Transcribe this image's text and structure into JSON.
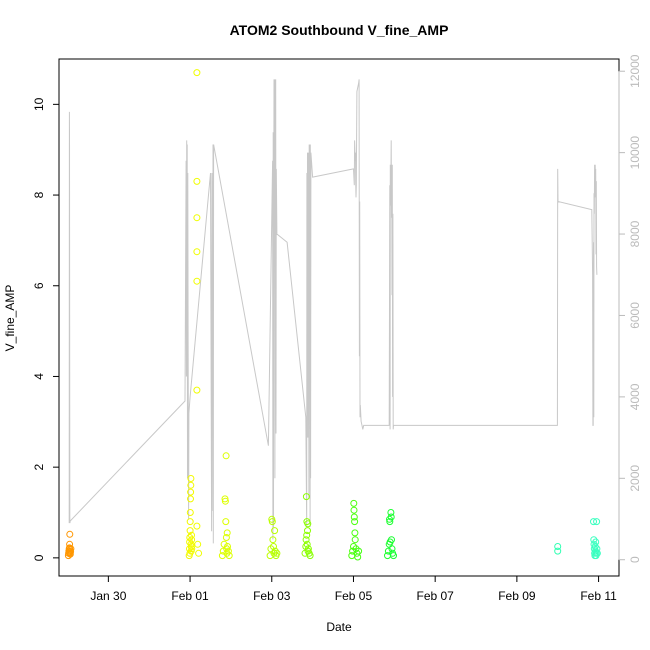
{
  "chart_data": {
    "type": "scatter",
    "title": "ATOM2 Southbound V_fine_AMP",
    "xlabel": "Date",
    "ylabel": "V_fine_AMP",
    "xlim": [
      "2024-01-28T19:00",
      "2024-02-11T12:00"
    ],
    "ylim": [
      -0.4,
      11.0
    ],
    "y2lim": [
      -400,
      12300
    ],
    "x_ticks": [
      {
        "label": "Jan 30",
        "date": "2024-01-30"
      },
      {
        "label": "Feb 01",
        "date": "2024-02-01"
      },
      {
        "label": "Feb 03",
        "date": "2024-02-03"
      },
      {
        "label": "Feb 05",
        "date": "2024-02-05"
      },
      {
        "label": "Feb 07",
        "date": "2024-02-07"
      },
      {
        "label": "Feb 09",
        "date": "2024-02-09"
      },
      {
        "label": "Feb 11",
        "date": "2024-02-11"
      }
    ],
    "y_ticks": [
      0,
      2,
      4,
      6,
      8,
      10
    ],
    "y2_ticks": [
      0,
      2000,
      4000,
      6000,
      8000,
      10000,
      12000
    ],
    "grid": false,
    "colors": {
      "point_gradient": [
        "#ff8c00",
        "#ffd000",
        "#f0ff00",
        "#c0ff00",
        "#60ff00",
        "#00ff40",
        "#00ff80",
        "#30ffb0",
        "#40ffc8"
      ],
      "line": "#c8c8c8",
      "axis": "#000000",
      "right_axis": "#bbbbbb"
    },
    "series": [
      {
        "type": "line",
        "axis": "right",
        "x": [
          "2024-01-29T01:00",
          "2024-01-29T01:05",
          "2024-01-29T01:10",
          "2024-01-29T01:20",
          "2024-01-29T01:25",
          "2024-01-29T01:35",
          "2024-01-31T21:00",
          "2024-01-31T21:40",
          "2024-01-31T21:50",
          "2024-01-31T22:00",
          "2024-01-31T22:10",
          "2024-01-31T22:20",
          "2024-01-31T22:30",
          "2024-01-31T22:40",
          "2024-01-31T22:50",
          "2024-01-31T23:00",
          "2024-01-31T23:10",
          "2024-01-31T23:20",
          "2024-02-01T00:00",
          "2024-02-01T12:00",
          "2024-02-01T12:40",
          "2024-02-01T12:50",
          "2024-02-01T13:00",
          "2024-02-01T13:10",
          "2024-02-01T13:20",
          "2024-02-01T13:30",
          "2024-02-01T13:40",
          "2024-02-01T13:50",
          "2024-02-02T22:00",
          "2024-02-03T00:30",
          "2024-02-03T00:40",
          "2024-02-03T00:50",
          "2024-02-03T01:00",
          "2024-02-03T01:10",
          "2024-02-03T01:20",
          "2024-02-03T01:30",
          "2024-02-03T01:40",
          "2024-02-03T01:50",
          "2024-02-03T02:00",
          "2024-02-03T02:10",
          "2024-02-03T02:20",
          "2024-02-03T02:30",
          "2024-02-03T02:40",
          "2024-02-03T03:00",
          "2024-02-03T09:00",
          "2024-02-03T20:00",
          "2024-02-03T20:30",
          "2024-02-03T20:40",
          "2024-02-03T20:50",
          "2024-02-03T21:00",
          "2024-02-03T21:10",
          "2024-02-03T21:20",
          "2024-02-03T21:30",
          "2024-02-03T21:40",
          "2024-02-03T21:50",
          "2024-02-03T22:00",
          "2024-02-03T22:10",
          "2024-02-03T22:20",
          "2024-02-03T22:30",
          "2024-02-03T22:40",
          "2024-02-03T22:50",
          "2024-02-03T23:00",
          "2024-02-04T00:00",
          "2024-02-05T00:00",
          "2024-02-05T00:30",
          "2024-02-05T00:40",
          "2024-02-05T01:00",
          "2024-02-05T01:10",
          "2024-02-05T01:20",
          "2024-02-05T01:30",
          "2024-02-05T01:40",
          "2024-02-05T02:00",
          "2024-02-05T03:00",
          "2024-02-05T03:20",
          "2024-02-05T03:30",
          "2024-02-05T03:40",
          "2024-02-05T03:50",
          "2024-02-05T04:00",
          "2024-02-05T04:30",
          "2024-02-05T05:00",
          "2024-02-05T05:30",
          "2024-02-05T06:00",
          "2024-02-05T06:30",
          "2024-02-05T20:30",
          "2024-02-05T21:00",
          "2024-02-05T21:20",
          "2024-02-05T21:30",
          "2024-02-05T21:40",
          "2024-02-05T21:50",
          "2024-02-05T22:00",
          "2024-02-05T22:10",
          "2024-02-05T22:20",
          "2024-02-05T22:30",
          "2024-02-05T22:40",
          "2024-02-05T22:50",
          "2024-02-05T23:00",
          "2024-02-05T23:10",
          "2024-02-05T23:20",
          "2024-02-05T23:30",
          "2024-02-06T00:00",
          "2024-02-09T23:50",
          "2024-02-10T00:00",
          "2024-02-10T00:10",
          "2024-02-10T20:00",
          "2024-02-10T20:30",
          "2024-02-10T20:40",
          "2024-02-10T20:50",
          "2024-02-10T21:00",
          "2024-02-10T21:10",
          "2024-02-10T21:20",
          "2024-02-10T21:30",
          "2024-02-10T21:40",
          "2024-02-10T21:50",
          "2024-02-10T22:00",
          "2024-02-10T22:10",
          "2024-02-10T22:20",
          "2024-02-10T22:30",
          "2024-02-10T22:40",
          "2024-02-10T22:50",
          "2024-02-10T23:00"
        ],
        "y": [
          900,
          11000,
          10500,
          1100,
          900,
          950,
          3900,
          9800,
          4500,
          10300,
          7000,
          10200,
          2000,
          9500,
          5500,
          3000,
          1000,
          3600,
          4000,
          9500,
          700,
          9500,
          8500,
          9300,
          1200,
          10200,
          400,
          10200,
          2800,
          9800,
          500,
          10500,
          800,
          9200,
          11800,
          9500,
          11800,
          2000,
          11800,
          10300,
          11800,
          3100,
          9600,
          8000,
          7800,
          3500,
          800,
          9500,
          6000,
          10000,
          3000,
          10000,
          7500,
          10000,
          1500,
          10200,
          9500,
          10200,
          800,
          10200,
          2000,
          10000,
          9400,
          9600,
          9200,
          10300,
          9800,
          10000,
          9300,
          8900,
          9200,
          11500,
          11700,
          11800,
          5000,
          8800,
          3500,
          3800,
          3400,
          3300,
          3200,
          3300,
          3300,
          3300,
          3300,
          9200,
          3200,
          9700,
          8700,
          9300,
          10300,
          8400,
          9200,
          6500,
          9700,
          4000,
          8500,
          3200,
          3300,
          3300,
          3300,
          9600,
          8800,
          8600,
          7000,
          3300,
          3300,
          7800,
          3500,
          9000,
          8500,
          9700,
          8900,
          9700,
          9200,
          9600,
          7500,
          9300,
          7200,
          7000
        ]
      },
      {
        "type": "scatter",
        "axis": "left",
        "name": "",
        "points": [
          {
            "x": "2024-01-29T00:30",
            "y": 0.05
          },
          {
            "x": "2024-01-29T00:40",
            "y": 0.1
          },
          {
            "x": "2024-01-29T00:50",
            "y": 0.15
          },
          {
            "x": "2024-01-29T01:00",
            "y": 0.2
          },
          {
            "x": "2024-01-29T01:05",
            "y": 0.12
          },
          {
            "x": "2024-01-29T01:10",
            "y": 0.22
          },
          {
            "x": "2024-01-29T01:15",
            "y": 0.3
          },
          {
            "x": "2024-01-29T01:20",
            "y": 0.52
          },
          {
            "x": "2024-01-29T01:25",
            "y": 0.18
          },
          {
            "x": "2024-01-29T01:30",
            "y": 0.1
          },
          {
            "x": "2024-01-29T01:40",
            "y": 0.08
          },
          {
            "x": "2024-01-29T01:50",
            "y": 0.14
          },
          {
            "x": "2024-01-29T02:00",
            "y": 0.2
          },
          {
            "x": "2024-01-31T23:30",
            "y": 0.05
          },
          {
            "x": "2024-01-31T23:40",
            "y": 0.2
          },
          {
            "x": "2024-01-31T23:45",
            "y": 0.35
          },
          {
            "x": "2024-01-31T23:50",
            "y": 0.45
          },
          {
            "x": "2024-01-31T23:55",
            "y": 0.1
          },
          {
            "x": "2024-02-01T00:00",
            "y": 0.6
          },
          {
            "x": "2024-02-01T00:05",
            "y": 0.8
          },
          {
            "x": "2024-02-01T00:10",
            "y": 1.0
          },
          {
            "x": "2024-02-01T00:15",
            "y": 1.3
          },
          {
            "x": "2024-02-01T00:20",
            "y": 1.45
          },
          {
            "x": "2024-02-01T00:25",
            "y": 1.6
          },
          {
            "x": "2024-02-01T00:30",
            "y": 1.75
          },
          {
            "x": "2024-02-01T00:35",
            "y": 0.3
          },
          {
            "x": "2024-02-01T00:40",
            "y": 0.15
          },
          {
            "x": "2024-02-01T00:45",
            "y": 0.25
          },
          {
            "x": "2024-02-01T00:50",
            "y": 0.5
          },
          {
            "x": "2024-02-01T00:55",
            "y": 0.4
          },
          {
            "x": "2024-02-01T01:00",
            "y": 0.2
          },
          {
            "x": "2024-02-01T04:00",
            "y": 10.7
          },
          {
            "x": "2024-02-01T04:00",
            "y": 8.3
          },
          {
            "x": "2024-02-01T04:00",
            "y": 7.5
          },
          {
            "x": "2024-02-01T04:00",
            "y": 6.75
          },
          {
            "x": "2024-02-01T04:00",
            "y": 6.1
          },
          {
            "x": "2024-02-01T04:00",
            "y": 3.7
          },
          {
            "x": "2024-02-01T04:00",
            "y": 0.7
          },
          {
            "x": "2024-02-01T04:30",
            "y": 0.3
          },
          {
            "x": "2024-02-01T05:00",
            "y": 0.1
          },
          {
            "x": "2024-02-01T19:00",
            "y": 0.05
          },
          {
            "x": "2024-02-01T19:30",
            "y": 0.15
          },
          {
            "x": "2024-02-01T20:00",
            "y": 0.3
          },
          {
            "x": "2024-02-01T20:30",
            "y": 1.3
          },
          {
            "x": "2024-02-01T20:45",
            "y": 1.25
          },
          {
            "x": "2024-02-01T21:00",
            "y": 0.8
          },
          {
            "x": "2024-02-01T21:10",
            "y": 2.25
          },
          {
            "x": "2024-02-01T21:20",
            "y": 0.45
          },
          {
            "x": "2024-02-01T21:30",
            "y": 0.2
          },
          {
            "x": "2024-02-01T21:40",
            "y": 0.1
          },
          {
            "x": "2024-02-01T21:50",
            "y": 0.55
          },
          {
            "x": "2024-02-01T22:00",
            "y": 0.25
          },
          {
            "x": "2024-02-01T22:30",
            "y": 0.15
          },
          {
            "x": "2024-02-01T23:00",
            "y": 0.05
          },
          {
            "x": "2024-02-02T23:00",
            "y": 0.05
          },
          {
            "x": "2024-02-02T23:30",
            "y": 0.2
          },
          {
            "x": "2024-02-03T00:00",
            "y": 0.85
          },
          {
            "x": "2024-02-03T00:20",
            "y": 0.8
          },
          {
            "x": "2024-02-03T00:40",
            "y": 0.4
          },
          {
            "x": "2024-02-03T01:00",
            "y": 0.25
          },
          {
            "x": "2024-02-03T01:20",
            "y": 0.1
          },
          {
            "x": "2024-02-03T01:40",
            "y": 0.6
          },
          {
            "x": "2024-02-03T02:00",
            "y": 0.15
          },
          {
            "x": "2024-02-03T02:30",
            "y": 0.05
          },
          {
            "x": "2024-02-03T03:00",
            "y": 0.1
          },
          {
            "x": "2024-02-03T19:30",
            "y": 0.1
          },
          {
            "x": "2024-02-03T20:00",
            "y": 0.25
          },
          {
            "x": "2024-02-03T20:10",
            "y": 0.4
          },
          {
            "x": "2024-02-03T20:20",
            "y": 1.35
          },
          {
            "x": "2024-02-03T20:30",
            "y": 0.5
          },
          {
            "x": "2024-02-03T20:40",
            "y": 0.8
          },
          {
            "x": "2024-02-03T20:50",
            "y": 0.3
          },
          {
            "x": "2024-02-03T21:00",
            "y": 0.6
          },
          {
            "x": "2024-02-03T21:10",
            "y": 0.75
          },
          {
            "x": "2024-02-03T21:20",
            "y": 0.15
          },
          {
            "x": "2024-02-03T21:30",
            "y": 0.2
          },
          {
            "x": "2024-02-03T22:00",
            "y": 0.1
          },
          {
            "x": "2024-02-03T22:30",
            "y": 0.05
          },
          {
            "x": "2024-02-04T23:00",
            "y": 0.05
          },
          {
            "x": "2024-02-04T23:30",
            "y": 0.15
          },
          {
            "x": "2024-02-05T00:00",
            "y": 0.25
          },
          {
            "x": "2024-02-05T00:10",
            "y": 1.2
          },
          {
            "x": "2024-02-05T00:20",
            "y": 1.05
          },
          {
            "x": "2024-02-05T00:30",
            "y": 0.9
          },
          {
            "x": "2024-02-05T00:40",
            "y": 0.8
          },
          {
            "x": "2024-02-05T00:50",
            "y": 0.55
          },
          {
            "x": "2024-02-05T01:00",
            "y": 0.4
          },
          {
            "x": "2024-02-05T01:30",
            "y": 0.2
          },
          {
            "x": "2024-02-05T02:00",
            "y": 0.1
          },
          {
            "x": "2024-02-05T02:30",
            "y": 0.02
          },
          {
            "x": "2024-02-05T03:00",
            "y": 0.15
          },
          {
            "x": "2024-02-05T20:00",
            "y": 0.05
          },
          {
            "x": "2024-02-05T20:30",
            "y": 0.15
          },
          {
            "x": "2024-02-05T21:00",
            "y": 0.3
          },
          {
            "x": "2024-02-05T21:10",
            "y": 0.85
          },
          {
            "x": "2024-02-05T21:20",
            "y": 0.8
          },
          {
            "x": "2024-02-05T21:30",
            "y": 0.35
          },
          {
            "x": "2024-02-05T22:00",
            "y": 1.0
          },
          {
            "x": "2024-02-05T22:10",
            "y": 0.9
          },
          {
            "x": "2024-02-05T22:20",
            "y": 0.4
          },
          {
            "x": "2024-02-05T22:40",
            "y": 0.2
          },
          {
            "x": "2024-02-05T23:00",
            "y": 0.1
          },
          {
            "x": "2024-02-05T23:30",
            "y": 0.05
          },
          {
            "x": "2024-02-10T00:00",
            "y": 0.15
          },
          {
            "x": "2024-02-10T00:00",
            "y": 0.25
          },
          {
            "x": "2024-02-10T21:00",
            "y": 0.8
          },
          {
            "x": "2024-02-10T21:10",
            "y": 0.4
          },
          {
            "x": "2024-02-10T21:20",
            "y": 0.3
          },
          {
            "x": "2024-02-10T21:30",
            "y": 0.2
          },
          {
            "x": "2024-02-10T21:40",
            "y": 0.1
          },
          {
            "x": "2024-02-10T21:50",
            "y": 0.05
          },
          {
            "x": "2024-02-10T22:00",
            "y": 0.25
          },
          {
            "x": "2024-02-10T22:10",
            "y": 0.15
          },
          {
            "x": "2024-02-10T22:20",
            "y": 0.35
          },
          {
            "x": "2024-02-10T22:30",
            "y": 0.05
          },
          {
            "x": "2024-02-10T22:40",
            "y": 0.1
          },
          {
            "x": "2024-02-10T22:50",
            "y": 0.8
          },
          {
            "x": "2024-02-10T23:00",
            "y": 0.2
          },
          {
            "x": "2024-02-10T23:20",
            "y": 0.1
          }
        ]
      }
    ]
  }
}
